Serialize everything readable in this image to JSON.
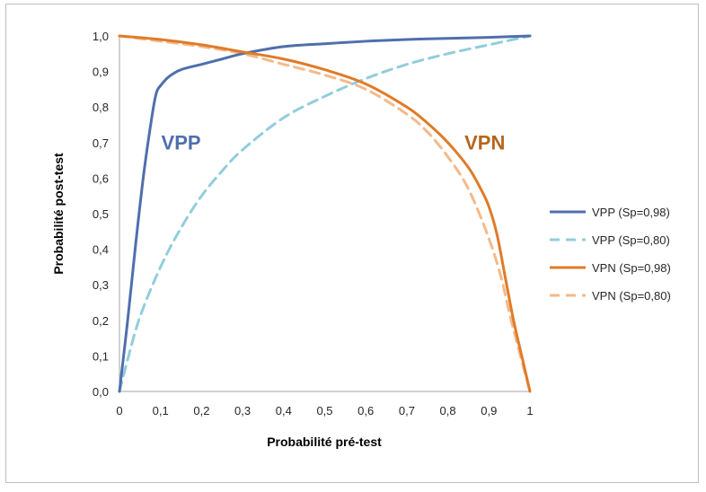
{
  "chart_data": {
    "type": "line",
    "xlabel": "Probabilité pré-test",
    "ylabel": "Probabilité post-test",
    "xlim": [
      0,
      1
    ],
    "ylim": [
      0,
      1
    ],
    "x_ticks": [
      "0",
      "0,1",
      "0,2",
      "0,3",
      "0,4",
      "0,5",
      "0,6",
      "0,7",
      "0,8",
      "0,9",
      "1"
    ],
    "y_ticks": [
      "0,0",
      "0,1",
      "0,2",
      "0,3",
      "0,4",
      "0,5",
      "0,6",
      "0,7",
      "0,8",
      "0,9",
      "1,0"
    ],
    "grid": false,
    "legend_position": "right",
    "annotations": [
      {
        "text": "VPP",
        "x": 0.15,
        "y": 0.68,
        "color": "#4f6fad"
      },
      {
        "text": "VPN",
        "x": 0.89,
        "y": 0.68,
        "color": "#b5651d"
      }
    ],
    "series": [
      {
        "name": "VPP (Sp=0,98)",
        "color": "#4f6fad",
        "dash": "solid",
        "x": [
          0,
          0.02,
          0.04,
          0.06,
          0.08,
          0.09,
          0.1,
          0.12,
          0.15,
          0.2,
          0.25,
          0.3,
          0.4,
          0.5,
          0.6,
          0.7,
          0.8,
          0.9,
          1.0
        ],
        "y": [
          0,
          0.2,
          0.42,
          0.62,
          0.78,
          0.84,
          0.86,
          0.885,
          0.905,
          0.92,
          0.935,
          0.95,
          0.97,
          0.978,
          0.985,
          0.99,
          0.993,
          0.996,
          1.0
        ]
      },
      {
        "name": "VPP (Sp=0,80)",
        "color": "#92cddc",
        "dash": "dashed",
        "x": [
          0,
          0.02,
          0.05,
          0.1,
          0.15,
          0.2,
          0.25,
          0.3,
          0.4,
          0.5,
          0.6,
          0.7,
          0.8,
          0.9,
          1.0
        ],
        "y": [
          0,
          0.09,
          0.21,
          0.35,
          0.46,
          0.55,
          0.62,
          0.68,
          0.77,
          0.83,
          0.88,
          0.92,
          0.95,
          0.975,
          1.0
        ]
      },
      {
        "name": "VPN (Sp=0,98)",
        "color": "#e07b28",
        "dash": "solid",
        "x": [
          0,
          0.1,
          0.2,
          0.3,
          0.4,
          0.5,
          0.6,
          0.7,
          0.75,
          0.8,
          0.85,
          0.88,
          0.9,
          0.92,
          0.94,
          0.96,
          0.98,
          1.0
        ],
        "y": [
          1.0,
          0.99,
          0.975,
          0.955,
          0.935,
          0.905,
          0.865,
          0.8,
          0.755,
          0.7,
          0.63,
          0.57,
          0.52,
          0.44,
          0.32,
          0.2,
          0.1,
          0
        ]
      },
      {
        "name": "VPN (Sp=0,80)",
        "color": "#f5b98a",
        "dash": "dashed",
        "x": [
          0,
          0.1,
          0.2,
          0.3,
          0.4,
          0.5,
          0.6,
          0.7,
          0.75,
          0.8,
          0.85,
          0.9,
          0.93,
          0.95,
          0.97,
          1.0
        ],
        "y": [
          1.0,
          0.985,
          0.97,
          0.95,
          0.92,
          0.89,
          0.85,
          0.78,
          0.73,
          0.66,
          0.57,
          0.43,
          0.32,
          0.22,
          0.13,
          0
        ]
      }
    ]
  }
}
